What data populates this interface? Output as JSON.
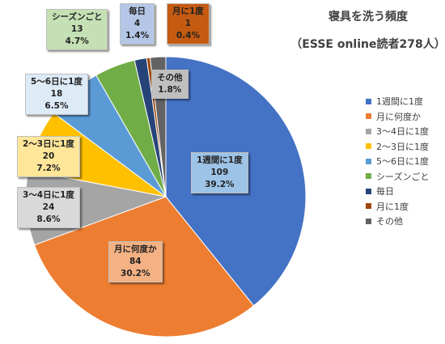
{
  "chart_data": {
    "type": "pie",
    "title": "寝具を洗う頻度",
    "subtitle": "（ESSE online読者278人）",
    "slices": [
      {
        "name": "1週間に1度",
        "count": "109",
        "percent": "39.2%",
        "value": 39.2,
        "color": "#4472c4",
        "label_bg": "#9dc3e6"
      },
      {
        "name": "月に何度か",
        "count": "84",
        "percent": "30.2%",
        "value": 30.2,
        "color": "#ed7d31",
        "label_bg": "#f4b183"
      },
      {
        "name": "3〜4日に1度",
        "count": "24",
        "percent": "8.6%",
        "value": 8.6,
        "color": "#a5a5a5",
        "label_bg": "#d9d9d9"
      },
      {
        "name": "2〜3日に1度",
        "count": "20",
        "percent": "7.2%",
        "value": 7.2,
        "color": "#ffc000",
        "label_bg": "#ffe699"
      },
      {
        "name": "5〜6日に1度",
        "count": "18",
        "percent": "6.5%",
        "value": 6.5,
        "color": "#5b9bd5",
        "label_bg": "#ddebf7"
      },
      {
        "name": "シーズンごと",
        "count": "13",
        "percent": "4.7%",
        "value": 4.7,
        "color": "#70ad47",
        "label_bg": "#c5e0b4"
      },
      {
        "name": "毎日",
        "count": "4",
        "percent": "1.4%",
        "value": 1.4,
        "color": "#264478",
        "label_bg": "#b4c7e7"
      },
      {
        "name": "月に1度",
        "count": "1",
        "percent": "0.4%",
        "value": 0.4,
        "color": "#9e480e",
        "label_bg": "#c55a11"
      },
      {
        "name": "その他",
        "count": "",
        "percent": "1.8%",
        "value": 1.8,
        "color": "#636363",
        "label_bg": "#bfbfbf"
      }
    ],
    "legend_position": "right"
  }
}
